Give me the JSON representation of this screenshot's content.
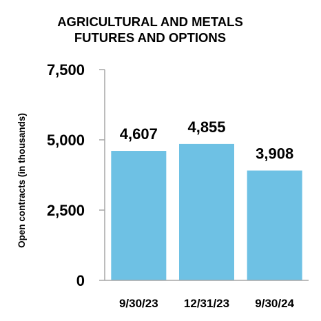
{
  "chart_data": {
    "type": "bar",
    "title_lines": [
      "AGRICULTURAL AND METALS",
      "FUTURES AND OPTIONS"
    ],
    "ylabel": "Open contracts (in thousands)",
    "xlabel": "",
    "categories": [
      "9/30/23",
      "12/31/23",
      "9/30/24"
    ],
    "values": [
      4607,
      4855,
      3908
    ],
    "data_labels": [
      "4,607",
      "4,855",
      "3,908"
    ],
    "ylim": [
      0,
      7500
    ],
    "y_ticks": [
      0,
      2500,
      5000,
      7500
    ],
    "y_tick_labels": [
      "0",
      "2,500",
      "5,000",
      "7,500"
    ],
    "grid": false,
    "legend": "none",
    "colors": {
      "bar": "#6EC1E4",
      "axis": "#A6A6A6",
      "text": "#000000"
    }
  }
}
